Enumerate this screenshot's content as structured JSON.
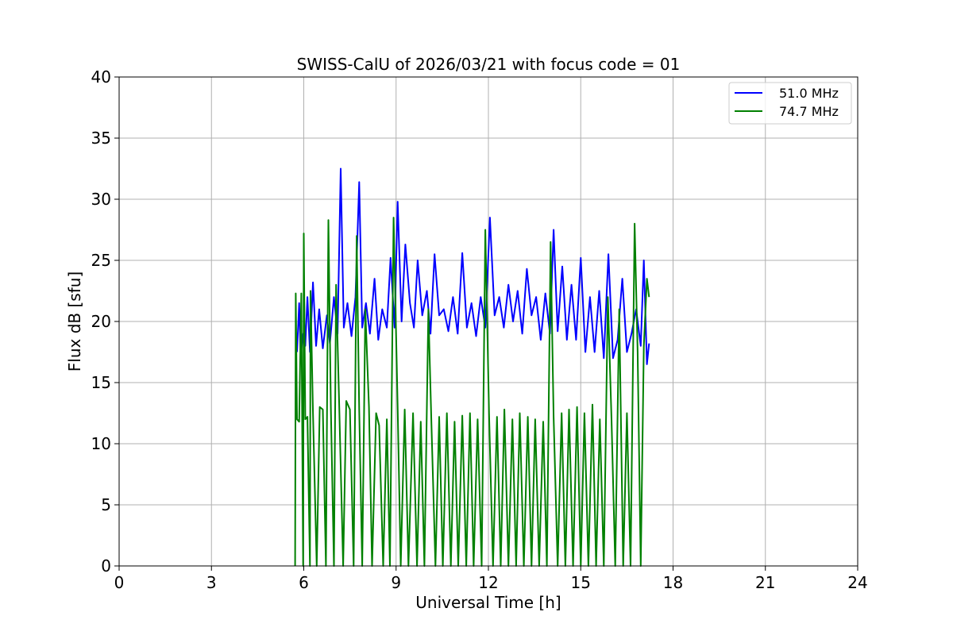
{
  "chart_data": {
    "type": "line",
    "title": "SWISS-CalU of 2026/03/21 with focus code = 01",
    "xlabel": "Universal Time [h]",
    "ylabel": "Flux dB [sfu]",
    "xlim": [
      0,
      24
    ],
    "ylim": [
      0,
      40
    ],
    "xticks": [
      0,
      3,
      6,
      9,
      12,
      15,
      18,
      21,
      24
    ],
    "yticks": [
      0,
      5,
      10,
      15,
      20,
      25,
      30,
      35,
      40
    ],
    "grid": true,
    "legend_position": "top-right",
    "series": [
      {
        "name": "51.0 MHz",
        "color": "#0000ff",
        "x": [
          5.78,
          5.85,
          5.9,
          5.98,
          6.05,
          6.12,
          6.2,
          6.3,
          6.4,
          6.5,
          6.62,
          6.75,
          6.85,
          6.98,
          7.1,
          7.2,
          7.3,
          7.42,
          7.55,
          7.68,
          7.8,
          7.9,
          8.02,
          8.15,
          8.3,
          8.42,
          8.55,
          8.7,
          8.82,
          8.95,
          9.05,
          9.18,
          9.3,
          9.45,
          9.58,
          9.7,
          9.85,
          10.0,
          10.12,
          10.25,
          10.4,
          10.55,
          10.7,
          10.85,
          11.0,
          11.15,
          11.3,
          11.45,
          11.6,
          11.75,
          11.9,
          12.05,
          12.2,
          12.35,
          12.5,
          12.65,
          12.8,
          12.95,
          13.1,
          13.25,
          13.4,
          13.55,
          13.7,
          13.85,
          14.0,
          14.12,
          14.25,
          14.4,
          14.55,
          14.7,
          14.85,
          15.0,
          15.15,
          15.3,
          15.45,
          15.6,
          15.75,
          15.9,
          16.05,
          16.2,
          16.35,
          16.5,
          16.65,
          16.8,
          16.95,
          17.05,
          17.15,
          17.22
        ],
        "y": [
          17.5,
          21.5,
          17.2,
          19.0,
          18.0,
          22.0,
          17.5,
          23.2,
          18.0,
          21.0,
          17.8,
          20.5,
          18.2,
          22.0,
          19.0,
          32.5,
          19.5,
          21.5,
          18.8,
          22.0,
          31.4,
          19.5,
          21.5,
          19.0,
          23.5,
          18.5,
          21.0,
          19.5,
          25.2,
          19.5,
          29.8,
          20.0,
          26.3,
          21.5,
          19.5,
          25.0,
          20.5,
          22.5,
          19.0,
          25.5,
          20.5,
          21.0,
          19.2,
          22.0,
          19.0,
          25.6,
          19.5,
          21.5,
          18.8,
          22.0,
          19.5,
          28.5,
          20.5,
          22.0,
          19.5,
          23.0,
          20.0,
          22.5,
          19.0,
          24.3,
          20.5,
          22.0,
          18.5,
          22.3,
          19.0,
          27.5,
          19.2,
          24.5,
          18.5,
          23.0,
          18.5,
          25.2,
          17.5,
          22.0,
          17.5,
          22.5,
          17.0,
          25.5,
          17.0,
          18.5,
          23.5,
          17.5,
          19.0,
          21.0,
          18.0,
          25.0,
          16.5,
          18.2
        ]
      },
      {
        "name": "74.7 MHz",
        "color": "#008000",
        "x": [
          5.72,
          5.74,
          5.78,
          5.85,
          5.92,
          5.98,
          6.0,
          6.05,
          6.12,
          6.2,
          6.22,
          6.3,
          6.42,
          6.52,
          6.62,
          6.72,
          6.8,
          6.88,
          6.98,
          7.05,
          7.15,
          7.28,
          7.38,
          7.5,
          7.62,
          7.72,
          7.8,
          7.9,
          8.0,
          8.12,
          8.22,
          8.35,
          8.45,
          8.58,
          8.7,
          8.8,
          8.92,
          9.05,
          9.15,
          9.28,
          9.4,
          9.55,
          9.68,
          9.8,
          9.92,
          10.05,
          10.15,
          10.28,
          10.4,
          10.52,
          10.65,
          10.78,
          10.9,
          11.02,
          11.15,
          11.28,
          11.4,
          11.52,
          11.65,
          11.78,
          11.9,
          12.02,
          12.15,
          12.28,
          12.4,
          12.52,
          12.65,
          12.78,
          12.9,
          13.02,
          13.15,
          13.28,
          13.4,
          13.52,
          13.65,
          13.78,
          13.9,
          14.02,
          14.12,
          14.25,
          14.38,
          14.5,
          14.62,
          14.75,
          14.88,
          15.0,
          15.12,
          15.25,
          15.38,
          15.5,
          15.62,
          15.75,
          15.88,
          16.0,
          16.12,
          16.25,
          16.38,
          16.5,
          16.62,
          16.75,
          16.85,
          16.95,
          17.05,
          17.15,
          17.22
        ],
        "y": [
          0.0,
          22.3,
          12.0,
          11.8,
          22.3,
          0.0,
          27.2,
          12.0,
          12.2,
          0.0,
          22.5,
          12.5,
          0.0,
          13.0,
          12.8,
          0.0,
          28.3,
          13.0,
          0.0,
          23.0,
          13.2,
          0.0,
          13.5,
          12.8,
          0.0,
          27.0,
          12.8,
          0.0,
          21.0,
          13.0,
          0.0,
          12.5,
          11.5,
          0.0,
          12.0,
          0.0,
          28.5,
          13.0,
          0.0,
          12.8,
          0.0,
          12.5,
          0.0,
          11.8,
          0.0,
          21.0,
          11.5,
          0.0,
          12.2,
          0.0,
          12.5,
          0.0,
          11.8,
          0.0,
          12.3,
          0.0,
          12.5,
          0.0,
          12.0,
          0.0,
          27.5,
          12.5,
          0.0,
          12.2,
          0.0,
          12.8,
          0.0,
          12.0,
          0.0,
          12.5,
          0.0,
          12.2,
          0.0,
          12.0,
          0.0,
          11.8,
          0.0,
          26.5,
          12.2,
          0.0,
          12.5,
          0.0,
          12.8,
          0.0,
          13.0,
          0.0,
          12.5,
          0.0,
          13.2,
          0.0,
          12.0,
          0.0,
          22.0,
          12.0,
          0.0,
          21.0,
          0.0,
          12.5,
          0.0,
          28.0,
          17.5,
          0.0,
          18.0,
          23.5,
          22.0
        ]
      }
    ]
  }
}
